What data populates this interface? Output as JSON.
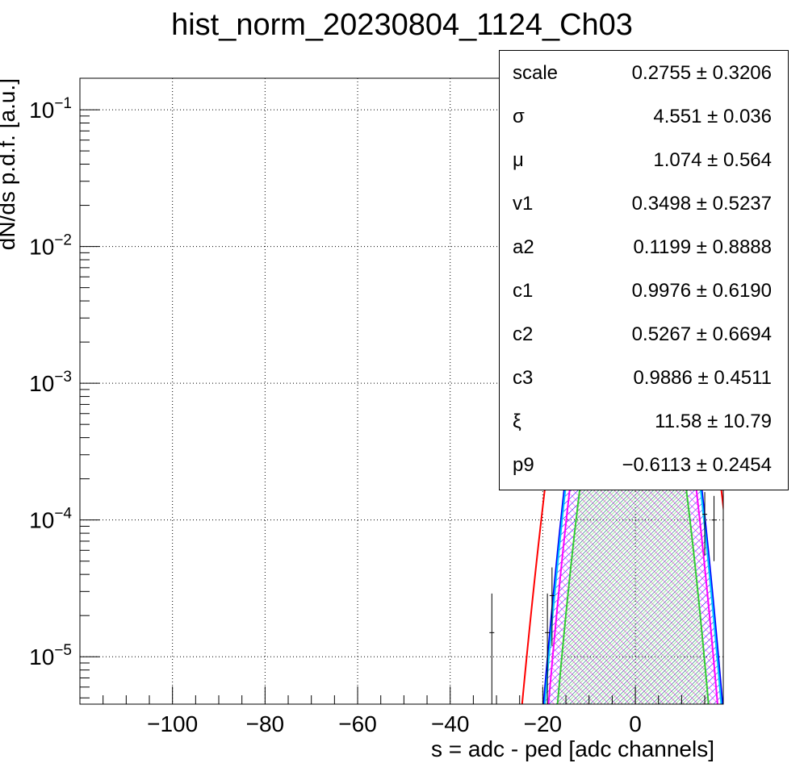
{
  "title": "hist_norm_20230804_1124_Ch03",
  "stats": [
    {
      "name": "scale",
      "value": "0.2755",
      "error": "0.3206"
    },
    {
      "name": "σ",
      "value": "4.551",
      "error": "0.036"
    },
    {
      "name": "μ",
      "value": "1.074",
      "error": "0.564"
    },
    {
      "name": "v1",
      "value": "0.3498",
      "error": "0.5237"
    },
    {
      "name": "a2",
      "value": "0.1199",
      "error": "0.8888"
    },
    {
      "name": "c1",
      "value": "0.9976",
      "error": "0.6190"
    },
    {
      "name": "c2",
      "value": "0.5267",
      "error": "0.6694"
    },
    {
      "name": "c3",
      "value": "0.9886",
      "error": "0.4511"
    },
    {
      "name": "ξ",
      "value": "11.58",
      "error": "10.79"
    },
    {
      "name": "p9",
      "value": "−0.6113",
      "error": "0.2454"
    }
  ],
  "chart_data": {
    "type": "line",
    "title": "hist_norm_20230804_1124_Ch03",
    "xlabel": "s = adc - ped [adc channels]",
    "ylabel": "dN/ds p.d.f. [a.u.]",
    "xlim": [
      -120,
      19
    ],
    "ylim": [
      4.5e-06,
      0.17
    ],
    "ylog": true,
    "grid": true,
    "xticks": [
      -100,
      -80,
      -60,
      -40,
      -20,
      0
    ],
    "xtick_labels": [
      "−100",
      "−80",
      "−60",
      "−40",
      "−20",
      "0"
    ],
    "yticks": [
      {
        "value": 0.1,
        "base": "10",
        "exp": "−1"
      },
      {
        "value": 0.01,
        "base": "10",
        "exp": "−2"
      },
      {
        "value": 0.001,
        "base": "10",
        "exp": "−3"
      },
      {
        "value": 0.0001,
        "base": "10",
        "exp": "−4"
      },
      {
        "value": 1e-05,
        "base": "10",
        "exp": "−5"
      }
    ],
    "series": [
      {
        "color": "#ff0000",
        "peak_x": -0.5,
        "peak_y": 0.085,
        "sigma": 5.4,
        "fill": "none"
      },
      {
        "color": "#0000ff",
        "peak_x": -0.5,
        "peak_y": 0.031,
        "sigma": 4.6,
        "fill": "hatch-blue"
      },
      {
        "color": "#00c8ff",
        "peak_x": -0.5,
        "peak_y": 0.029,
        "sigma": 4.55,
        "fill": "none"
      },
      {
        "color": "#ff00ff",
        "peak_x": -0.5,
        "peak_y": 0.017,
        "sigma": 4.5,
        "fill": "hatch-magenta"
      },
      {
        "color": "#33cc33",
        "peak_x": -0.5,
        "peak_y": 0.006,
        "sigma": 4.3,
        "fill": "hatch-green"
      }
    ],
    "data_points": [
      {
        "x": -31,
        "y": 1.5e-05,
        "ylo": 4.5e-06,
        "yhi": 2.9e-05
      },
      {
        "x": -19,
        "y": 1.5e-05,
        "ylo": 4.5e-06,
        "yhi": 2.9e-05
      },
      {
        "x": -18,
        "y": 2.8e-05,
        "ylo": 1.2e-05,
        "yhi": 4.5e-05
      },
      {
        "x": 15,
        "y": 0.00011,
        "ylo": 5.5e-05,
        "yhi": 0.00016
      },
      {
        "x": 17,
        "y": 0.0001,
        "ylo": 5e-05,
        "yhi": 0.00015
      }
    ]
  }
}
